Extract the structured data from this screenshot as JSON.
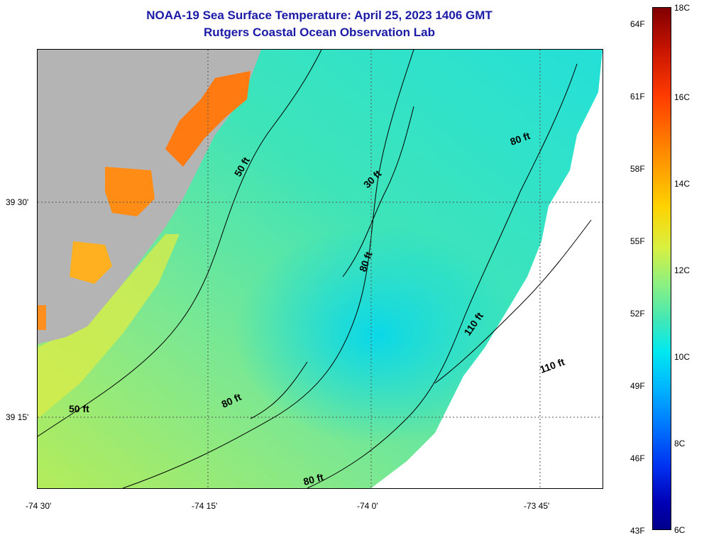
{
  "header": {
    "title": "NOAA-19 Sea Surface Temperature:  April 25, 2023 1406 GMT",
    "subtitle": "Rutgers Coastal Ocean Observation Lab"
  },
  "axes": {
    "x_labels": [
      "-74 30'",
      "-74 15'",
      "-74 0'",
      "-73 45'"
    ],
    "y_labels": [
      "39 30'",
      "39 15'"
    ]
  },
  "contour_labels": [
    "50 ft",
    "30 ft",
    "80 ft",
    "80 ft",
    "110 ft",
    "80 ft",
    "110 ft",
    "50 ft",
    "80 ft"
  ],
  "colorbar": {
    "fahrenheit": [
      "64F",
      "61F",
      "58F",
      "55F",
      "52F",
      "49F",
      "46F",
      "43F"
    ],
    "celsius": [
      "18C",
      "16C",
      "14C",
      "12C",
      "10C",
      "8C",
      "6C"
    ]
  },
  "colors": {
    "land": "#b4b4b4",
    "no_data": "#ffffff",
    "title": "#1a1aa6"
  }
}
